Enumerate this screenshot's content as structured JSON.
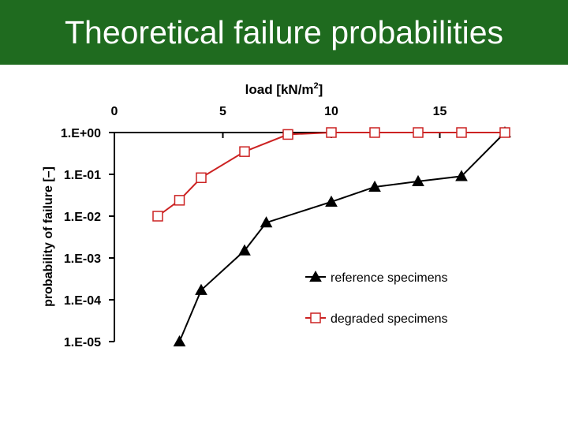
{
  "header": {
    "title": "Theoretical failure probabilities"
  },
  "colors": {
    "header_bg": "#1f6b1f",
    "reference": "#000000",
    "degraded": "#cc2222"
  },
  "chart_data": {
    "type": "line",
    "title": "",
    "xlabel": "load [kN/m",
    "xlabel_sup": "2",
    "xlabel_end": "]",
    "ylabel": "probability of failure [–]",
    "y_scale": "log",
    "xlim": [
      0,
      18
    ],
    "ylim": [
      1e-05,
      1
    ],
    "x_axis_position": "top",
    "x_ticks": [
      0,
      5,
      10,
      15
    ],
    "x_tick_labels": [
      "0",
      "5",
      "10",
      "15"
    ],
    "y_ticks": [
      1,
      0.1,
      0.01,
      0.001,
      0.0001,
      1e-05
    ],
    "y_tick_labels": [
      "1.E+00",
      "1.E-01",
      "1.E-02",
      "1.E-03",
      "1.E-04",
      "1.E-05"
    ],
    "grid": false,
    "legend_position": "bottom-right",
    "series": [
      {
        "name": "reference specimens",
        "marker": "triangle",
        "x": [
          3,
          4,
          6,
          7,
          10,
          12,
          14,
          16,
          18
        ],
        "y": [
          1e-05,
          0.00017,
          0.0015,
          0.007,
          0.022,
          0.05,
          0.068,
          0.09,
          1.0
        ]
      },
      {
        "name": "degraded specimens",
        "marker": "square",
        "x": [
          2,
          3,
          4,
          6,
          8,
          10,
          12,
          14,
          16,
          18
        ],
        "y": [
          0.01,
          0.024,
          0.083,
          0.35,
          0.9,
          1.0,
          1.0,
          1.0,
          1.0,
          1.0
        ]
      }
    ]
  }
}
